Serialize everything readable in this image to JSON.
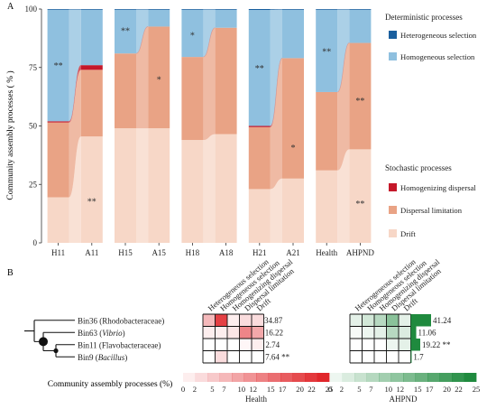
{
  "panel_a": {
    "label": "A",
    "ylabel": "Community assembly processes ( % )",
    "yticks": [
      "0",
      "25",
      "50",
      "75",
      "100"
    ],
    "categories": [
      "H11",
      "A11",
      "H15",
      "A15",
      "H18",
      "A18",
      "H21",
      "A21",
      "Health",
      "AHPND"
    ],
    "legend": {
      "deterministic_title": "Deterministic processes",
      "stochastic_title": "Stochastic processes",
      "items": [
        {
          "name": "Heterogeneous selection",
          "color": "#1a5f9e"
        },
        {
          "name": "Homogeneous selection",
          "color": "#8fc0df"
        },
        {
          "name": "Homogenizing dispersal",
          "color": "#c5182a"
        },
        {
          "name": "Dispersal limitation",
          "color": "#e9a385"
        },
        {
          "name": "Drift",
          "color": "#f7d7c7"
        }
      ]
    },
    "annotations": [
      {
        "category": "H11",
        "y": 76,
        "text": "**"
      },
      {
        "category": "A11",
        "y": 18,
        "text": "**"
      },
      {
        "category": "H15",
        "y": 91,
        "text": "**"
      },
      {
        "category": "A15",
        "y": 70,
        "text": "*"
      },
      {
        "category": "H18",
        "y": 89,
        "text": "*"
      },
      {
        "category": "H21",
        "y": 75,
        "text": "**"
      },
      {
        "category": "A21",
        "y": 41,
        "text": "*"
      },
      {
        "category": "Health",
        "y": 82,
        "text": "**"
      },
      {
        "category": "AHPND",
        "y": 61,
        "text": "**"
      },
      {
        "category": "AHPND",
        "y": 17,
        "text": "**"
      }
    ]
  },
  "chart_data": [
    {
      "type": "bar",
      "stacked": true,
      "title": "",
      "ylabel": "Community assembly processes ( % )",
      "ylim": [
        0,
        100
      ],
      "categories": [
        "H11",
        "A11",
        "H15",
        "A15",
        "H18",
        "A18",
        "H21",
        "A21",
        "Health",
        "AHPND"
      ],
      "series": [
        {
          "name": "Drift",
          "color": "#f7d7c7",
          "values": [
            19.5,
            45.5,
            49,
            49,
            44,
            46.5,
            23,
            27.5,
            31,
            40
          ]
        },
        {
          "name": "Dispersal limitation",
          "color": "#e9a385",
          "values": [
            32,
            28.5,
            32,
            43.5,
            35.5,
            45.5,
            26.5,
            51.5,
            33.5,
            45.5
          ]
        },
        {
          "name": "Homogenizing dispersal",
          "color": "#c5182a",
          "values": [
            0.5,
            2,
            0,
            0,
            0,
            0,
            0.5,
            0,
            0,
            0
          ]
        },
        {
          "name": "Homogeneous selection",
          "color": "#8fc0df",
          "values": [
            47.7,
            23.7,
            18.7,
            7.2,
            20.2,
            7.7,
            49.6,
            20.7,
            35.2,
            14.2
          ]
        },
        {
          "name": "Heterogeneous selection",
          "color": "#1a5f9e",
          "values": [
            0.3,
            0.3,
            0.3,
            0.3,
            0.3,
            0.3,
            0.4,
            0.3,
            0.3,
            0.3
          ]
        }
      ]
    },
    {
      "type": "heatmap",
      "title": "Health",
      "columns": [
        "Heterogeneous selection",
        "Homogeneous selection",
        "Homogenizing dispersal",
        "Dispersal limitation",
        "Drift"
      ],
      "rows": [
        "Bin36",
        "Bin63",
        "Bin11",
        "Bin9"
      ],
      "values": [
        [
          8,
          22,
          2,
          4,
          4
        ],
        [
          2,
          2,
          3,
          14,
          10
        ],
        [
          0,
          0,
          0,
          1,
          2
        ],
        [
          0,
          4,
          0,
          0,
          0
        ]
      ],
      "bar_values": [
        34.87,
        16.22,
        2.74,
        7.64
      ],
      "bar_labels": [
        "34.87",
        "16.22",
        "2.74",
        "7.64"
      ],
      "significance": [
        "",
        "",
        "",
        "**"
      ],
      "scale_ticks": [
        "0",
        "2",
        "5",
        "7",
        "10",
        "12",
        "15",
        "17",
        "20",
        "22",
        "25"
      ],
      "color": "#e0262a"
    },
    {
      "type": "heatmap",
      "title": "AHPND",
      "columns": [
        "Heterogeneous selection",
        "Homogeneous selection",
        "Homogenizing dispersal",
        "Dispersal limitation",
        "Drift"
      ],
      "rows": [
        "Bin36",
        "Bin63",
        "Bin11",
        "Bin9"
      ],
      "values": [
        [
          3,
          5,
          8,
          13,
          3
        ],
        [
          1,
          2,
          3,
          8,
          4
        ],
        [
          0,
          0,
          0,
          2,
          3
        ],
        [
          0,
          0,
          0,
          0,
          0
        ]
      ],
      "bar_values": [
        41.24,
        11.06,
        19.22,
        1.7
      ],
      "bar_labels": [
        "41.24",
        "11.06",
        "19.22",
        "1.7"
      ],
      "significance": [
        "",
        "",
        "**",
        ""
      ],
      "scale_ticks": [
        "0",
        "2",
        "5",
        "7",
        "10",
        "12",
        "15",
        "17",
        "20",
        "22",
        "25"
      ],
      "color": "#1f8a3e"
    }
  ],
  "panel_b": {
    "label": "B",
    "taxa": [
      {
        "bin": "Bin36",
        "open": " (",
        "name": "Rhodobacteraceae",
        "name_italic": false,
        "close": ")"
      },
      {
        "bin": "Bin63",
        "open": " (",
        "name": "Vibrio",
        "name_italic": true,
        "close": ")"
      },
      {
        "bin": "Bin11",
        "open": " (",
        "name": "Flavobacteraceae",
        "name_italic": false,
        "close": ")"
      },
      {
        "bin": "Bin9",
        "open": " (",
        "name": "Bacillus",
        "name_italic": true,
        "close": ")"
      }
    ],
    "left_caption": "Community assembly processes (%)",
    "scale_max": 25
  }
}
